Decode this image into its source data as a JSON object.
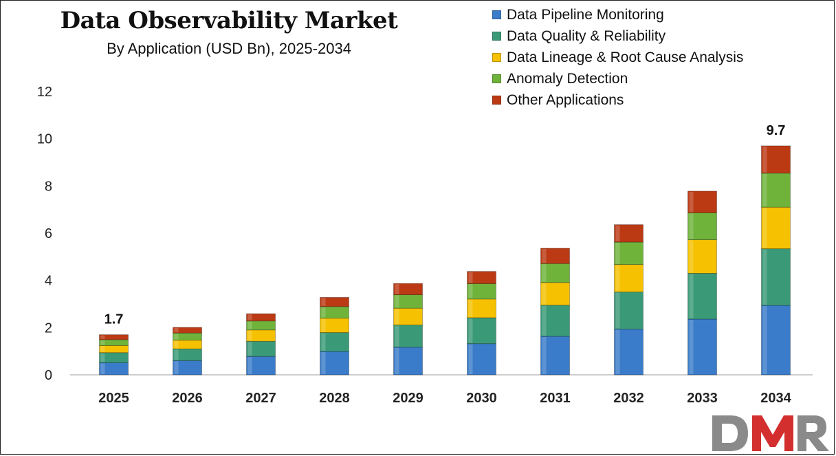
{
  "chart_data": {
    "type": "bar",
    "stacked": true,
    "title": "Data Observability Market",
    "subtitle": "By Application (USD Bn), 2025-2034",
    "xlabel": "",
    "ylabel": "",
    "ylim": [
      0,
      12
    ],
    "yticks": [
      "0",
      "2",
      "4",
      "6",
      "8",
      "10",
      "12"
    ],
    "grid": false,
    "legend_position": "top-right",
    "categories": [
      "2025",
      "2026",
      "2027",
      "2028",
      "2029",
      "2030",
      "2031",
      "2032",
      "2033",
      "2034"
    ],
    "series": [
      {
        "name": "Data Pipeline Monitoring",
        "color": "#3a7cc9",
        "values": [
          0.51,
          0.6,
          0.78,
          0.99,
          1.17,
          1.32,
          1.63,
          1.94,
          2.36,
          2.94
        ]
      },
      {
        "name": "Data Quality & Reliability",
        "color": "#3a9a78",
        "values": [
          0.43,
          0.5,
          0.64,
          0.8,
          0.94,
          1.1,
          1.32,
          1.57,
          1.94,
          2.4
        ]
      },
      {
        "name": "Data Lineage & Root Cause Analysis",
        "color": "#f5c100",
        "values": [
          0.3,
          0.37,
          0.48,
          0.61,
          0.71,
          0.79,
          0.96,
          1.16,
          1.42,
          1.76
        ]
      },
      {
        "name": "Anomaly Detection",
        "color": "#6fb33b",
        "values": [
          0.25,
          0.3,
          0.38,
          0.49,
          0.57,
          0.65,
          0.8,
          0.95,
          1.14,
          1.44
        ]
      },
      {
        "name": "Other Applications",
        "color": "#bb3a14",
        "values": [
          0.21,
          0.24,
          0.31,
          0.39,
          0.48,
          0.52,
          0.65,
          0.74,
          0.92,
          1.16
        ]
      }
    ],
    "annotations": [
      {
        "category": "2025",
        "text": "1.7"
      },
      {
        "category": "2034",
        "text": "9.7"
      }
    ]
  },
  "logo": {
    "text": "DMR",
    "colors": [
      "#8a8a8a",
      "#d32f2f",
      "#8a8a8a"
    ]
  }
}
